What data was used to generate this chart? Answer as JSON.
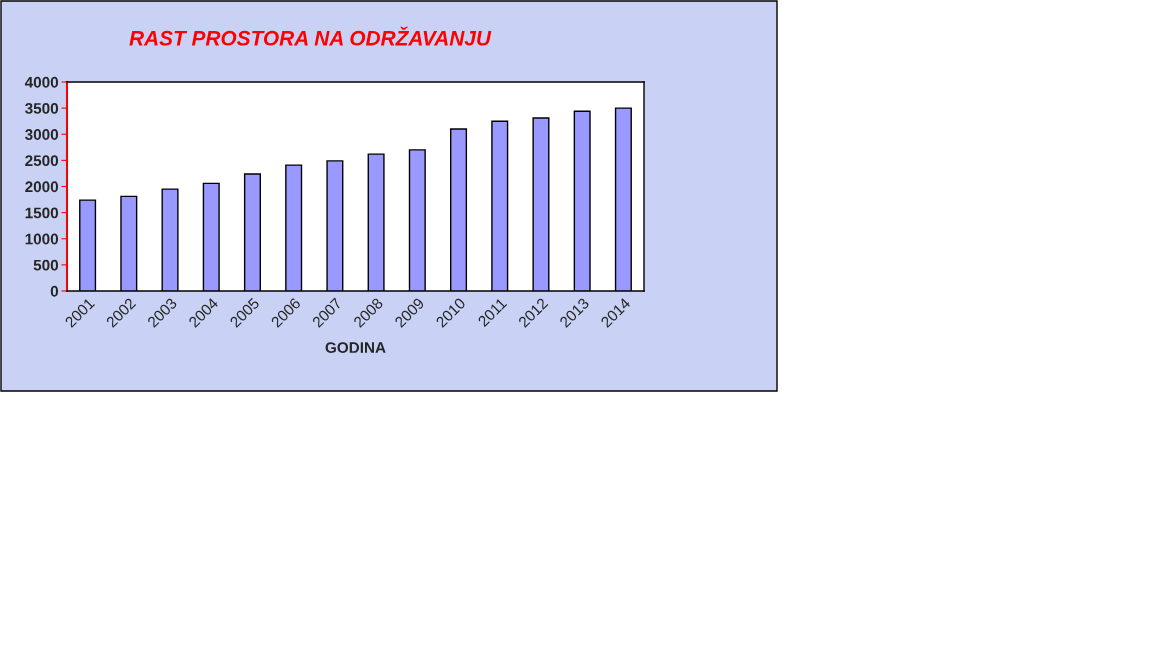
{
  "chart_data": {
    "type": "bar",
    "title": "RAST PROSTORA NA ODRŽAVANJU",
    "xlabel": "GODINA",
    "categories": [
      "2001",
      "2002",
      "2003",
      "2004",
      "2005",
      "2006",
      "2007",
      "2008",
      "2009",
      "2010",
      "2011",
      "2012",
      "2013",
      "2014"
    ],
    "values": [
      1740,
      1810,
      1950,
      2060,
      2240,
      2410,
      2490,
      2620,
      2700,
      3100,
      3250,
      3310,
      3440,
      3500
    ],
    "color": "#9999ff",
    "ylim": [
      0,
      4000
    ],
    "yticks": [
      0,
      500,
      1000,
      1500,
      2000,
      2500,
      3000,
      3500,
      4000
    ],
    "grid": false
  }
}
